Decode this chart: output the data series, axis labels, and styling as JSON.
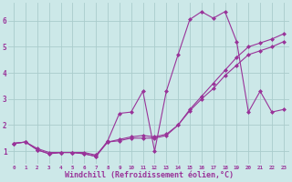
{
  "bg_color": "#cce8e8",
  "grid_color": "#aacccc",
  "line_color": "#993399",
  "marker": "D",
  "markersize": 2.0,
  "linewidth": 0.8,
  "xlabel": "Windchill (Refroidissement éolien,°C)",
  "xlabel_color": "#993399",
  "xlabel_fontsize": 6.0,
  "ylabel_ticks": [
    1,
    2,
    3,
    4,
    5,
    6
  ],
  "xlim": [
    -0.5,
    23.5
  ],
  "ylim": [
    0.5,
    6.7
  ],
  "xticks": [
    0,
    1,
    2,
    3,
    4,
    5,
    6,
    7,
    8,
    9,
    10,
    11,
    12,
    13,
    14,
    15,
    16,
    17,
    18,
    19,
    20,
    21,
    22,
    23
  ],
  "series1_x": [
    0,
    1,
    2,
    3,
    4,
    5,
    6,
    7,
    8,
    9,
    10,
    11,
    12,
    13,
    14,
    15,
    16,
    17,
    18,
    19,
    20,
    21,
    22,
    23
  ],
  "series1_y": [
    1.3,
    1.35,
    1.05,
    0.9,
    0.95,
    0.95,
    0.9,
    0.8,
    1.4,
    2.45,
    2.5,
    3.3,
    1.0,
    3.3,
    4.7,
    6.05,
    6.35,
    6.1,
    6.35,
    5.2,
    2.5,
    3.3,
    2.5,
    2.6
  ],
  "series2_x": [
    0,
    1,
    2,
    3,
    4,
    5,
    6,
    7,
    8,
    9,
    10,
    11,
    12,
    13,
    14,
    15,
    16,
    17,
    18,
    19,
    20,
    21,
    22,
    23
  ],
  "series2_y": [
    1.3,
    1.35,
    1.05,
    0.9,
    0.95,
    0.95,
    0.9,
    0.8,
    1.35,
    1.4,
    1.5,
    1.5,
    1.5,
    1.6,
    2.0,
    2.6,
    3.1,
    3.6,
    4.1,
    4.6,
    5.0,
    5.15,
    5.3,
    5.5
  ],
  "series3_x": [
    0,
    1,
    2,
    3,
    4,
    5,
    6,
    7,
    8,
    9,
    10,
    11,
    12,
    13,
    14,
    15,
    16,
    17,
    18,
    19,
    20,
    21,
    22,
    23
  ],
  "series3_y": [
    1.3,
    1.35,
    1.1,
    0.95,
    0.95,
    0.95,
    0.95,
    0.85,
    1.35,
    1.45,
    1.55,
    1.6,
    1.55,
    1.65,
    2.0,
    2.55,
    3.0,
    3.4,
    3.9,
    4.3,
    4.7,
    4.85,
    5.0,
    5.2
  ]
}
